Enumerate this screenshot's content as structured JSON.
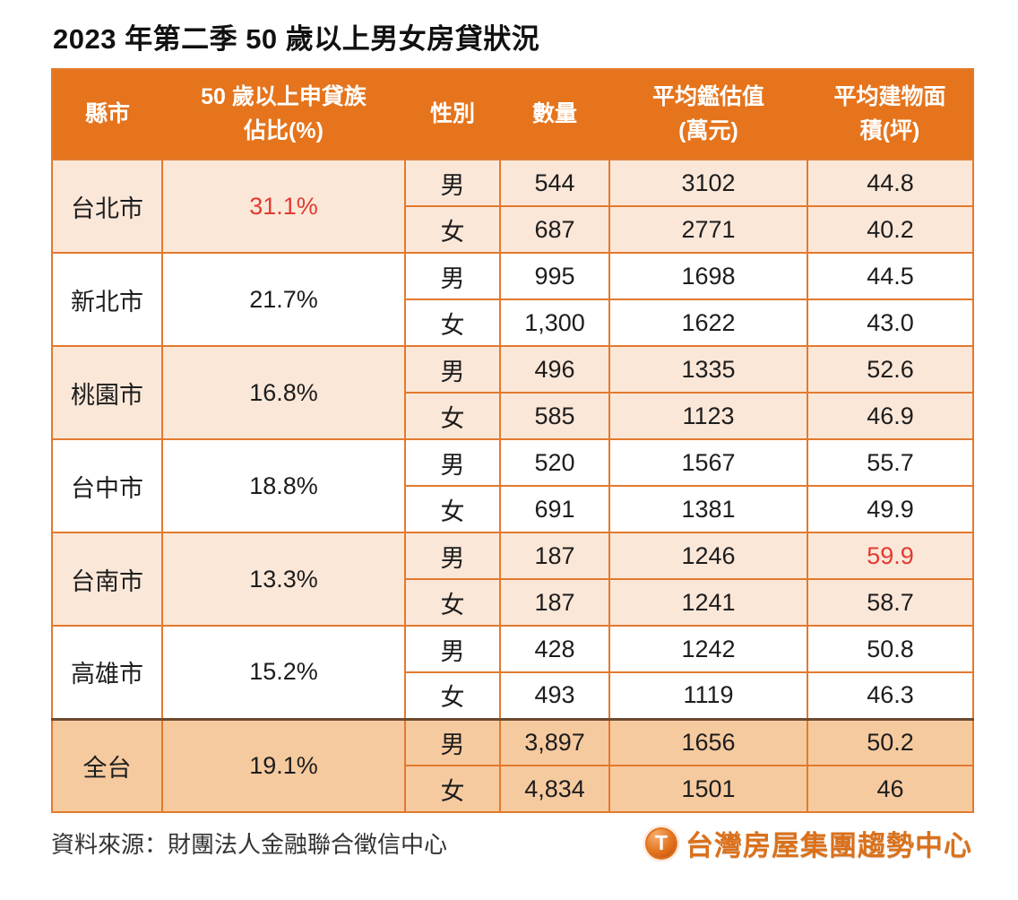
{
  "title": "2023 年第二季 50 歲以上男女房貸狀況",
  "colors": {
    "header_bg": "#E5741C",
    "border": "#E27A2E",
    "row_peach": "#FBE7D8",
    "row_white": "#FFFFFF",
    "row_dark_peach": "#F6CA9F",
    "highlight_red": "#E23B32",
    "dark_separator": "#6E4B2F",
    "brand_orange": "#D9711C"
  },
  "table": {
    "headers": [
      {
        "lines": [
          "縣市"
        ]
      },
      {
        "lines": [
          "50 歲以上申貸族",
          "佔比(%)"
        ]
      },
      {
        "lines": [
          "性別"
        ]
      },
      {
        "lines": [
          "數量"
        ]
      },
      {
        "lines": [
          "平均鑑估值",
          "(萬元)"
        ]
      },
      {
        "lines": [
          "平均建物面",
          "積(坪)"
        ]
      }
    ],
    "groups": [
      {
        "city": "台北市",
        "pct": "31.1%",
        "pct_red": true,
        "shade": "peach",
        "rows": [
          {
            "gender": "男",
            "count": "544",
            "value": "3102",
            "area": "44.8"
          },
          {
            "gender": "女",
            "count": "687",
            "value": "2771",
            "area": "40.2"
          }
        ]
      },
      {
        "city": "新北市",
        "pct": "21.7%",
        "pct_red": false,
        "shade": "white",
        "rows": [
          {
            "gender": "男",
            "count": "995",
            "value": "1698",
            "area": "44.5"
          },
          {
            "gender": "女",
            "count": "1,300",
            "value": "1622",
            "area": "43.0"
          }
        ]
      },
      {
        "city": "桃園市",
        "pct": "16.8%",
        "pct_red": false,
        "shade": "peach",
        "rows": [
          {
            "gender": "男",
            "count": "496",
            "value": "1335",
            "area": "52.6"
          },
          {
            "gender": "女",
            "count": "585",
            "value": "1123",
            "area": "46.9"
          }
        ]
      },
      {
        "city": "台中市",
        "pct": "18.8%",
        "pct_red": false,
        "shade": "white",
        "rows": [
          {
            "gender": "男",
            "count": "520",
            "value": "1567",
            "area": "55.7"
          },
          {
            "gender": "女",
            "count": "691",
            "value": "1381",
            "area": "49.9"
          }
        ]
      },
      {
        "city": "台南市",
        "pct": "13.3%",
        "pct_red": false,
        "shade": "peach",
        "rows": [
          {
            "gender": "男",
            "count": "187",
            "value": "1246",
            "area": "59.9",
            "area_red": true
          },
          {
            "gender": "女",
            "count": "187",
            "value": "1241",
            "area": "58.7"
          }
        ]
      },
      {
        "city": "高雄市",
        "pct": "15.2%",
        "pct_red": false,
        "shade": "white",
        "rows": [
          {
            "gender": "男",
            "count": "428",
            "value": "1242",
            "area": "50.8"
          },
          {
            "gender": "女",
            "count": "493",
            "value": "1119",
            "area": "46.3"
          }
        ]
      },
      {
        "city": "全台",
        "pct": "19.1%",
        "pct_red": false,
        "shade": "dark",
        "dark_top": true,
        "rows": [
          {
            "gender": "男",
            "count": "3,897",
            "value": "1656",
            "area": "50.2"
          },
          {
            "gender": "女",
            "count": "4,834",
            "value": "1501",
            "area": "46"
          }
        ]
      }
    ]
  },
  "footer": {
    "source": "資料來源：財團法人金融聯合徵信中心",
    "brand": {
      "icon_letter": "T",
      "name": "台灣房屋集團趨勢中心"
    }
  },
  "chart_data": {
    "type": "table",
    "title": "2023 年第二季 50 歲以上男女房貸狀況",
    "columns": [
      "縣市",
      "50 歲以上申貸族佔比(%)",
      "性別",
      "數量",
      "平均鑑估值(萬元)",
      "平均建物面積(坪)"
    ],
    "rows": [
      [
        "台北市",
        "31.1%",
        "男",
        544,
        3102,
        44.8
      ],
      [
        "台北市",
        "31.1%",
        "女",
        687,
        2771,
        40.2
      ],
      [
        "新北市",
        "21.7%",
        "男",
        995,
        1698,
        44.5
      ],
      [
        "新北市",
        "21.7%",
        "女",
        1300,
        1622,
        43.0
      ],
      [
        "桃園市",
        "16.8%",
        "男",
        496,
        1335,
        52.6
      ],
      [
        "桃園市",
        "16.8%",
        "女",
        585,
        1123,
        46.9
      ],
      [
        "台中市",
        "18.8%",
        "男",
        520,
        1567,
        55.7
      ],
      [
        "台中市",
        "18.8%",
        "女",
        691,
        1381,
        49.9
      ],
      [
        "台南市",
        "13.3%",
        "男",
        187,
        1246,
        59.9
      ],
      [
        "台南市",
        "13.3%",
        "女",
        187,
        1241,
        58.7
      ],
      [
        "高雄市",
        "15.2%",
        "男",
        428,
        1242,
        50.8
      ],
      [
        "高雄市",
        "15.2%",
        "女",
        493,
        1119,
        46.3
      ],
      [
        "全台",
        "19.1%",
        "男",
        3897,
        1656,
        50.2
      ],
      [
        "全台",
        "19.1%",
        "女",
        4834,
        1501,
        46
      ]
    ],
    "highlighted_red_cells": [
      "台北市 佔比 31.1%",
      "台南市 男 平均建物面積 59.9"
    ],
    "source": "資料來源：財團法人金融聯合徵信中心"
  }
}
